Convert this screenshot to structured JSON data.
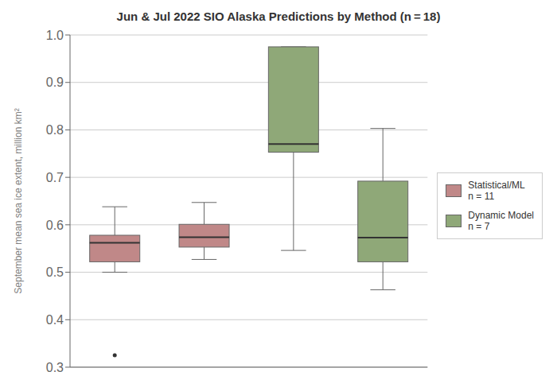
{
  "chart_data": {
    "type": "box",
    "title": "Jun & Jul 2022 SIO Alaska Predictions by Method (n = 18)",
    "y_label": "September mean sea ice extent, million km²",
    "categories": [
      null,
      null,
      null,
      null
    ],
    "series": [
      {
        "name": "Statistical/ML\nn = 11",
        "color": "#c08888",
        "values": [
          {
            "whislo": 0.5,
            "q1": 0.522,
            "med": 0.562,
            "q3": 0.578,
            "whishi": 0.638,
            "fliers": [
              0.325
            ]
          },
          {
            "whislo": 0.527,
            "q1": 0.553,
            "med": 0.574,
            "q3": 0.601,
            "whishi": 0.647,
            "fliers": []
          },
          null,
          null
        ]
      },
      {
        "name": "Dynamic Model\nn = 7",
        "color": "#8fa878",
        "values": [
          null,
          null,
          {
            "whislo": 0.546,
            "q1": 0.753,
            "med": 0.77,
            "q3": 0.975,
            "whishi": 0.975,
            "fliers": []
          },
          {
            "whislo": 0.463,
            "q1": 0.522,
            "med": 0.573,
            "q3": 0.692,
            "whishi": 0.803,
            "fliers": []
          }
        ]
      }
    ],
    "ylim": [
      0.3,
      1.0
    ],
    "yticks": [
      0.3,
      0.4,
      0.5,
      0.6,
      0.7,
      0.8,
      0.9,
      {
        "value": 1.0,
        "label": "1.0"
      }
    ],
    "grid": true,
    "legend": "right"
  }
}
